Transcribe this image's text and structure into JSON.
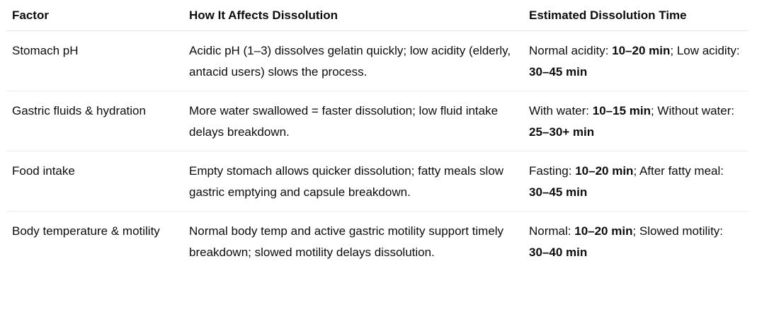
{
  "table": {
    "headers": [
      "Factor",
      "How It Affects Dissolution",
      "Estimated Dissolution Time"
    ],
    "rows": [
      {
        "factor": "Stomach pH",
        "effect": "Acidic pH (1–3) dissolves gelatin quickly; low acidity (elderly, antacid users) slows the process.",
        "time": {
          "a_label": "Normal acidity: ",
          "a_value": "10–20 min",
          "sep": "; Low acidity: ",
          "b_value": "30–45 min"
        }
      },
      {
        "factor": "Gastric fluids & hydration",
        "effect": "More water swallowed = faster dissolution; low fluid intake delays breakdown.",
        "time": {
          "a_label": "With water: ",
          "a_value": "10–15 min",
          "sep": "; Without water: ",
          "b_value": "25–30+ min"
        }
      },
      {
        "factor": "Food intake",
        "effect": "Empty stomach allows quicker dissolution; fatty meals slow gastric emptying and capsule breakdown.",
        "time": {
          "a_label": "Fasting: ",
          "a_value": "10–20 min",
          "sep": "; After fatty meal: ",
          "b_value": "30–45 min"
        }
      },
      {
        "factor": "Body temperature & motility",
        "effect": "Normal body temp and active gastric motility support timely breakdown; slowed motility delays dissolution.",
        "time": {
          "a_label": "Normal: ",
          "a_value": "10–20 min",
          "sep": "; Slowed motility: ",
          "b_value": "30–40 min"
        }
      }
    ]
  }
}
